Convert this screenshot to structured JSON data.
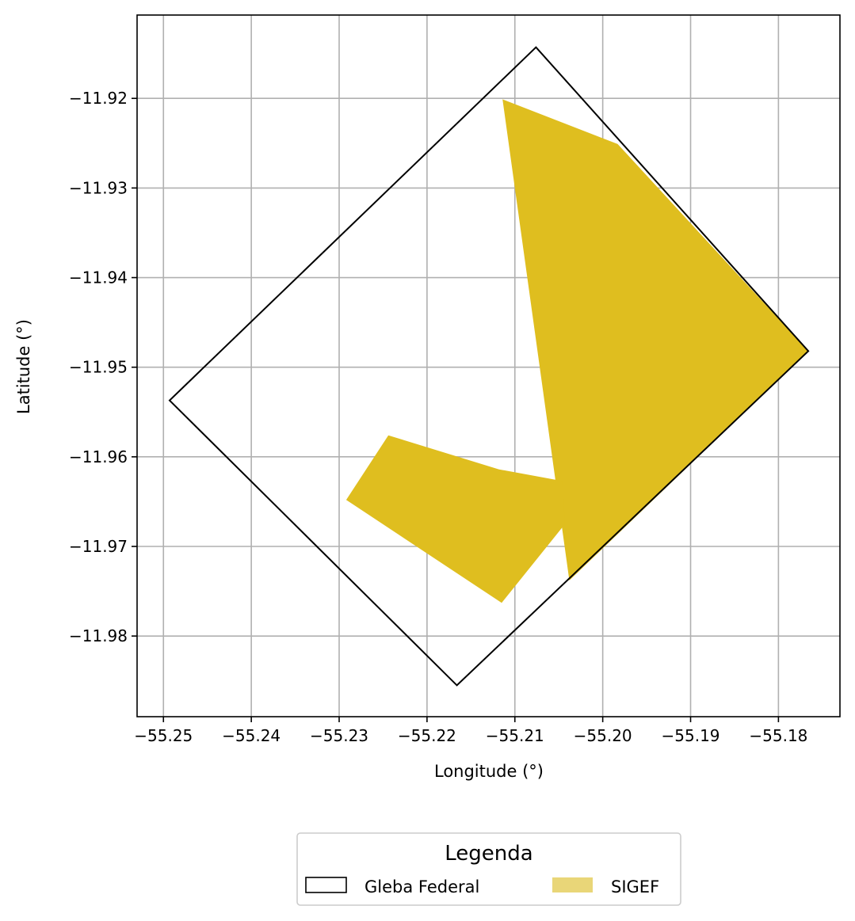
{
  "chart_data": {
    "type": "map",
    "xlabel": "Longitude (°)",
    "ylabel": "Latitude (°)",
    "xlim": [
      -55.253,
      -55.173
    ],
    "ylim": [
      -11.989,
      -11.9107
    ],
    "xticks": [
      -55.25,
      -55.24,
      -55.23,
      -55.22,
      -55.21,
      -55.2,
      -55.19,
      -55.18
    ],
    "xtick_labels": [
      "−55.25",
      "−55.24",
      "−55.23",
      "−55.22",
      "−55.21",
      "−55.20",
      "−55.19",
      "−55.18"
    ],
    "yticks": [
      -11.92,
      -11.93,
      -11.94,
      -11.95,
      -11.96,
      -11.97,
      -11.98
    ],
    "ytick_labels": [
      "−11.92",
      "−11.93",
      "−11.94",
      "−11.95",
      "−11.96",
      "−11.97",
      "−11.98"
    ],
    "grid": true,
    "colors": {
      "gleba_outline": "#000000",
      "sigef_fill": "#dfbe1f",
      "sigef_legend_fill": "#e9d678",
      "grid": "#b0b0b0"
    },
    "layers": [
      {
        "name": "Gleba Federal",
        "style": "outline",
        "polygons": [
          [
            [
              -55.2076,
              -11.9143
            ],
            [
              -55.1766,
              -11.9482
            ],
            [
              -55.2166,
              -11.9855
            ],
            [
              -55.2493,
              -11.9537
            ],
            [
              -55.2076,
              -11.9143
            ]
          ]
        ]
      },
      {
        "name": "SIGEF",
        "style": "fill",
        "polygons": [
          [
            [
              -55.2114,
              -11.9201
            ],
            [
              -55.1983,
              -11.9251
            ],
            [
              -55.1766,
              -11.9482
            ],
            [
              -55.2038,
              -11.9738
            ],
            [
              -55.2114,
              -11.9201
            ]
          ],
          [
            [
              -55.2244,
              -11.9576
            ],
            [
              -55.2118,
              -11.9614
            ],
            [
              -55.2046,
              -11.9627
            ],
            [
              -55.2043,
              -11.9675
            ],
            [
              -55.2115,
              -11.9763
            ],
            [
              -55.2292,
              -11.9648
            ],
            [
              -55.2244,
              -11.9576
            ]
          ]
        ]
      }
    ],
    "legend": {
      "title": "Legenda",
      "position": "bottom-center",
      "entries": [
        {
          "label": "Gleba Federal",
          "style": "outline"
        },
        {
          "label": "SIGEF",
          "style": "fill"
        }
      ]
    }
  }
}
